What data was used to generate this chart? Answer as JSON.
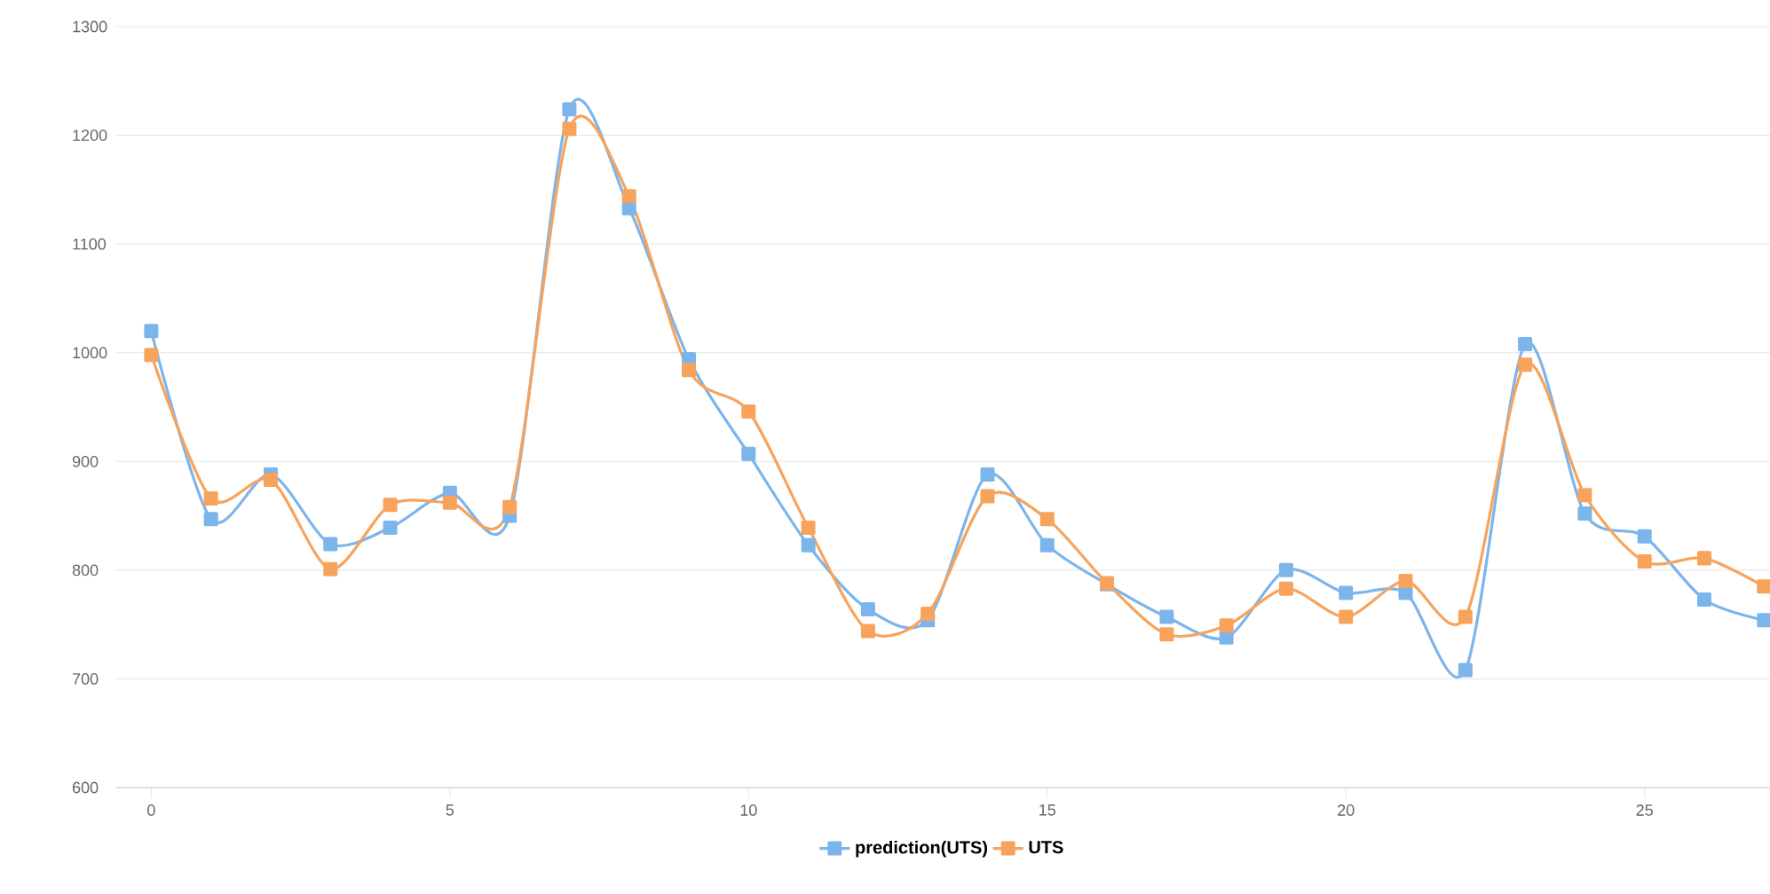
{
  "chart_data": {
    "type": "line",
    "x": [
      0,
      1,
      2,
      3,
      4,
      5,
      6,
      7,
      8,
      9,
      10,
      11,
      12,
      13,
      14,
      15,
      16,
      17,
      18,
      19,
      20,
      21,
      22,
      23,
      24,
      25,
      26,
      27
    ],
    "series": [
      {
        "name": "prediction(UTS)",
        "color": "#7cb5ec",
        "values": [
          1020,
          847,
          888,
          824,
          839,
          871,
          850,
          1224,
          1133,
          994,
          907,
          823,
          764,
          754,
          888,
          823,
          787,
          757,
          738,
          800,
          779,
          779,
          708,
          1008,
          852,
          831,
          773,
          754
        ]
      },
      {
        "name": "UTS",
        "color": "#f7a35c",
        "values": [
          998,
          866,
          883,
          801,
          860,
          862,
          858,
          1206,
          1144,
          984,
          946,
          839,
          744,
          760,
          868,
          847,
          788,
          741,
          749,
          783,
          757,
          790,
          757,
          989,
          869,
          808,
          811,
          785
        ]
      }
    ],
    "xlim": [
      -0.6,
      27.1
    ],
    "ylim": [
      600,
      1300
    ],
    "xticks": [
      0,
      5,
      10,
      15,
      20,
      25
    ],
    "yticks": [
      600,
      700,
      800,
      900,
      1000,
      1100,
      1200,
      1300
    ],
    "grid": "y",
    "legend": "bottom",
    "marker": "square",
    "line_style": "solid"
  }
}
